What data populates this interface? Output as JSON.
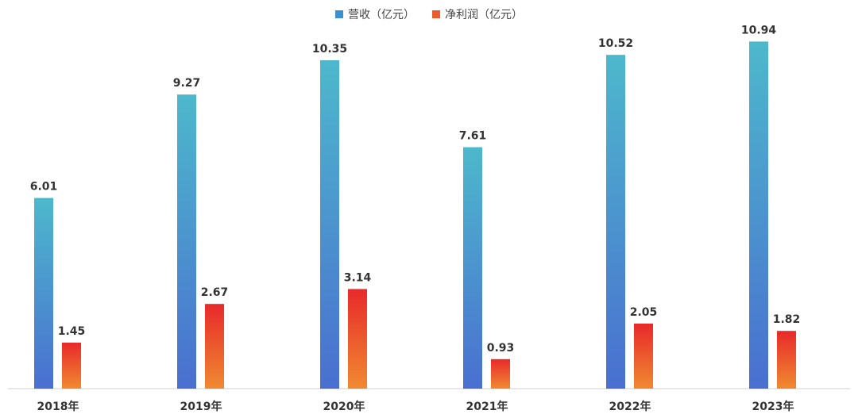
{
  "chart_data": {
    "type": "bar",
    "categories": [
      "2018年",
      "2019年",
      "2020年",
      "2021年",
      "2022年",
      "2023年"
    ],
    "series": [
      {
        "name": "营收（亿元）",
        "values": [
          6.01,
          9.27,
          10.35,
          7.61,
          10.52,
          10.94
        ],
        "color_top": "#4db8cc",
        "color_bottom": "#4a6fd0"
      },
      {
        "name": "净利润（亿元）",
        "values": [
          1.45,
          2.67,
          3.14,
          0.93,
          2.05,
          1.82
        ],
        "color_top": "#e8292b",
        "color_bottom": "#f08a30"
      }
    ],
    "ylim": [
      0,
      11.5
    ],
    "grid": false,
    "legend": "top-center",
    "data_labels": [
      "6.01",
      "9.27",
      "10.35",
      "7.61",
      "10.52",
      "10.94",
      "1.45",
      "2.67",
      "3.14",
      "0.93",
      "2.05",
      "1.82"
    ]
  }
}
